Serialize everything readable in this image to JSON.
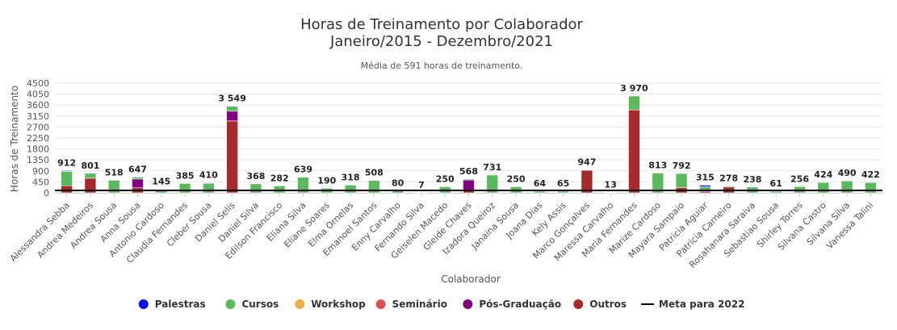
{
  "chart_data": {
    "type": "bar",
    "stacked": true,
    "title": "Horas de Treinamento por Colaborador",
    "title_line2": "Janeiro/2015 - Dezembro/2021",
    "subtitle": "Média de 591 horas de treinamento.",
    "xlabel": "Colaborador",
    "ylabel": "Horas de Treinamento",
    "ylim": [
      0,
      4500
    ],
    "yticks": [
      "0",
      "450",
      "900",
      "1350",
      "1800",
      "2250",
      "2700",
      "3150",
      "3600",
      "4050",
      "4500"
    ],
    "ytick_values": [
      0,
      450,
      900,
      1350,
      1800,
      2250,
      2700,
      3150,
      3600,
      4050,
      4500
    ],
    "grid": true,
    "legend_position": "bottom",
    "categories": [
      "Alessandra Sebba",
      "Andrea Medeiros",
      "Andrea Sousa",
      "Anna Sousa",
      "Antonio Cardoso",
      "Claudia Fernandes",
      "Cleber Sousa",
      "Daniel Selis",
      "Daniel Silva",
      "Edilson Francisco",
      "Eliana Silva",
      "Eliane Soares",
      "Elma Ornelas",
      "Emanoel Santos",
      "Enny Carvalho",
      "Fernando Silva",
      "Geiselen Macedo",
      "Gleide Chaves",
      "Izadora Queiroz",
      "Janaina Sousa",
      "Joana Dias",
      "Kely Assis",
      "Marco Gonçalves",
      "Maressa Carvalho",
      "Maria Fernandes",
      "Marize Cardoso",
      "Mayara Sampaio",
      "Patricia Aguiar",
      "Patricia Carneiro",
      "Rosahanara Saraiva",
      "Sebastiao Sousa",
      "Shirley Torres",
      "Silvana Castro",
      "Silvana Silva",
      "Vanessa Talini"
    ],
    "totals": [
      "912",
      "801",
      "518",
      "647",
      "145",
      "385",
      "410",
      "3 549",
      "368",
      "282",
      "639",
      "190",
      "318",
      "508",
      "80",
      "7",
      "250",
      "568",
      "731",
      "250",
      "64",
      "65",
      "947",
      "13",
      "3 970",
      "813",
      "792",
      "315",
      "278",
      "238",
      "61",
      "256",
      "424",
      "490",
      "422"
    ],
    "series": [
      {
        "name": "Palestras",
        "color": "#1010ee",
        "values": [
          30,
          0,
          0,
          0,
          0,
          0,
          30,
          0,
          0,
          0,
          0,
          0,
          0,
          0,
          0,
          0,
          0,
          0,
          0,
          0,
          0,
          0,
          0,
          0,
          0,
          0,
          0,
          65,
          0,
          0,
          0,
          0,
          0,
          0,
          0
        ]
      },
      {
        "name": "Cursos",
        "color": "#5cb85c",
        "values": [
          590,
          200,
          518,
          80,
          145,
          385,
          380,
          200,
          368,
          282,
          639,
          190,
          318,
          508,
          80,
          7,
          250,
          40,
          731,
          250,
          64,
          65,
          20,
          13,
          570,
          813,
          572,
          190,
          40,
          238,
          61,
          256,
          424,
          490,
          422
        ]
      },
      {
        "name": "Workshop",
        "color": "#f0ad4e",
        "values": [
          0,
          0,
          0,
          0,
          0,
          0,
          0,
          0,
          0,
          0,
          0,
          0,
          0,
          0,
          0,
          0,
          0,
          0,
          0,
          0,
          0,
          0,
          0,
          0,
          0,
          0,
          0,
          0,
          0,
          0,
          0,
          0,
          0,
          0,
          0
        ]
      },
      {
        "name": "Seminário",
        "color": "#d9534f",
        "values": [
          0,
          0,
          0,
          0,
          0,
          0,
          0,
          0,
          0,
          0,
          0,
          0,
          0,
          0,
          0,
          0,
          0,
          0,
          0,
          0,
          0,
          0,
          0,
          0,
          0,
          0,
          0,
          0,
          0,
          0,
          0,
          0,
          0,
          0,
          0
        ]
      },
      {
        "name": "Pós-Graduação",
        "color": "#800080",
        "values": [
          0,
          0,
          0,
          360,
          0,
          0,
          0,
          400,
          0,
          0,
          0,
          0,
          0,
          0,
          0,
          0,
          0,
          448,
          0,
          0,
          0,
          0,
          0,
          0,
          0,
          0,
          0,
          0,
          0,
          0,
          0,
          0,
          0,
          0,
          0
        ]
      },
      {
        "name": "Outros",
        "color": "#a52a2a",
        "values": [
          292,
          601,
          0,
          207,
          0,
          0,
          0,
          2949,
          0,
          0,
          0,
          0,
          0,
          0,
          0,
          0,
          0,
          80,
          0,
          0,
          0,
          0,
          927,
          0,
          3400,
          0,
          220,
          60,
          238,
          0,
          0,
          0,
          0,
          0,
          0
        ]
      }
    ],
    "target_line": {
      "name": "Meta para 2022",
      "color": "#000000",
      "value": 100
    }
  }
}
